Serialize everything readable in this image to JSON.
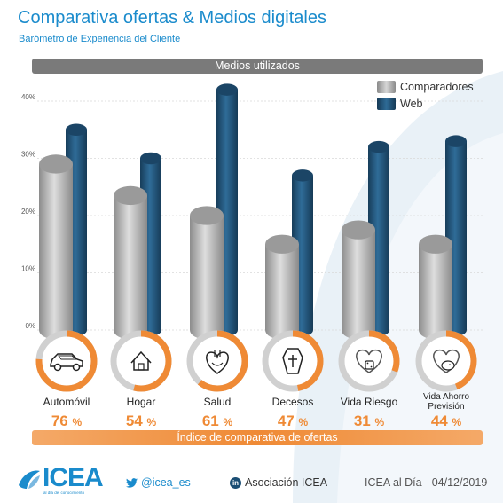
{
  "header": {
    "title": "Comparativa ofertas & Medios digitales",
    "subtitle": "Barómetro de Experiencia del Cliente",
    "section_label": "Medios utilizados"
  },
  "colors": {
    "accent": "#1a8bcc",
    "comparadores": "#a8a8a8",
    "web": "#1f5276",
    "orange": "#ef8a35",
    "ring_gray": "#d0d0d0"
  },
  "chart_data": {
    "type": "bar",
    "title": "Medios utilizados",
    "categories": [
      "Automóvil",
      "Hogar",
      "Salud",
      "Decesos",
      "Vida Riesgo",
      "Vida Ahorro Previsión"
    ],
    "series": [
      {
        "name": "Comparadores",
        "values": [
          29,
          23.5,
          20,
          15,
          17.5,
          15
        ]
      },
      {
        "name": "Web",
        "values": [
          35,
          30,
          42,
          27,
          32,
          33
        ]
      }
    ],
    "yticks": [
      "0%",
      "10%",
      "20%",
      "30%",
      "40%"
    ],
    "ylim": [
      0,
      42
    ],
    "legend": "top-right",
    "grid": true
  },
  "index": {
    "label": "Índice de comparativa de ofertas",
    "items": [
      {
        "category": "Automóvil",
        "percent": 76,
        "icon": "car-icon"
      },
      {
        "category": "Hogar",
        "percent": 54,
        "icon": "house-icon"
      },
      {
        "category": "Salud",
        "percent": 61,
        "icon": "heart-organ-icon"
      },
      {
        "category": "Decesos",
        "percent": 47,
        "icon": "coffin-icon"
      },
      {
        "category": "Vida Riesgo",
        "percent": 31,
        "icon": "heart-dice-icon"
      },
      {
        "category": "Vida Ahorro Previsión",
        "percent": 44,
        "icon": "heart-piggybank-icon"
      }
    ],
    "percent_suffix": "%"
  },
  "footer": {
    "logo": "ICEA",
    "logo_tagline": "al día del conocimiento",
    "twitter": "@icea_es",
    "linkedin_mark": "in",
    "linkedin": "Asociación ICEA",
    "date_text": "ICEA al Día - 04/12/2019"
  }
}
